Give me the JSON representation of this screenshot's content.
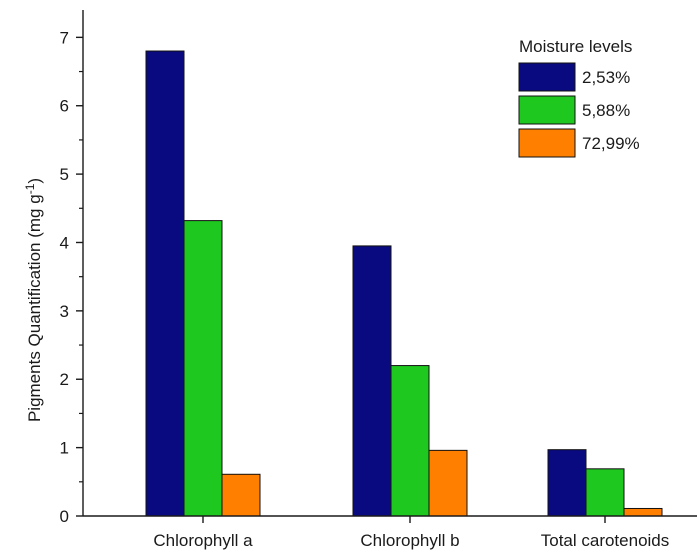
{
  "chart_data": {
    "type": "bar",
    "title": "",
    "xlabel": "",
    "ylabel": "Pigments Quantification",
    "ylabel_unit_prefix": "(mg g",
    "ylabel_unit_superscript": "-1",
    "ylabel_unit_suffix": ")",
    "ylim": [
      0,
      7.4
    ],
    "yticks": [
      0,
      1,
      2,
      3,
      4,
      5,
      6,
      7
    ],
    "categories": [
      "Chlorophyll a",
      "Chlorophyll b",
      "Total carotenoids"
    ],
    "legend": {
      "title": "Moisture levels",
      "position": "top-right"
    },
    "grid": false,
    "series": [
      {
        "name": "2,53%",
        "color": "#0a0a80",
        "values": [
          6.8,
          3.95,
          0.97
        ]
      },
      {
        "name": "5,88%",
        "color": "#1ec81e",
        "values": [
          4.32,
          2.2,
          0.69
        ]
      },
      {
        "name": "72,99%",
        "color": "#ff7f00",
        "values": [
          0.61,
          0.96,
          0.11
        ]
      }
    ]
  }
}
